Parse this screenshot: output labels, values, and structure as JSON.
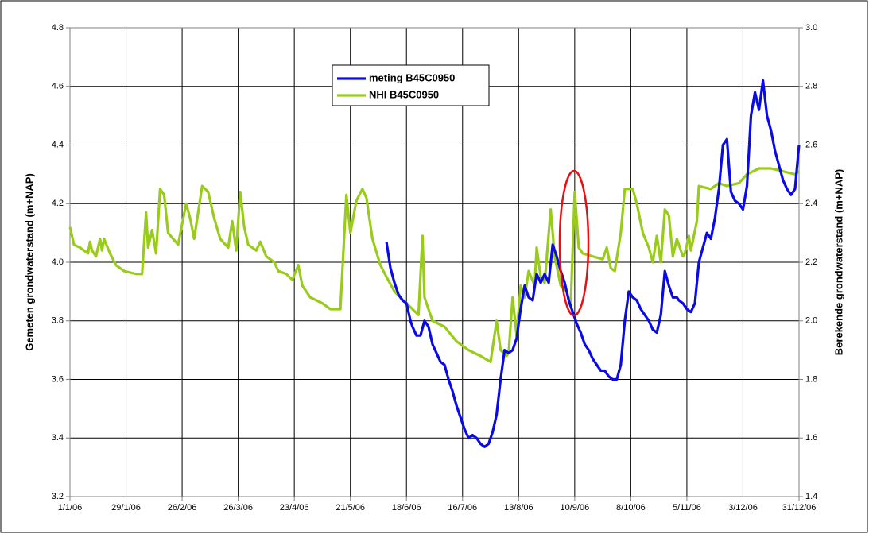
{
  "chart_data": {
    "type": "line",
    "ylabel": "Gemeten grondwaterstand (m+NAP)",
    "y2label": "Berekende grondwaterstand (m+NAP)",
    "xlim": [
      "2006-01-01",
      "2006-12-31"
    ],
    "xticks": [
      {
        "value": "2006-01-01",
        "label": "1/1/06"
      },
      {
        "value": "2006-01-29",
        "label": "29/1/06"
      },
      {
        "value": "2006-02-26",
        "label": "26/2/06"
      },
      {
        "value": "2006-03-26",
        "label": "26/3/06"
      },
      {
        "value": "2006-04-23",
        "label": "23/4/06"
      },
      {
        "value": "2006-05-21",
        "label": "21/5/06"
      },
      {
        "value": "2006-06-18",
        "label": "18/6/06"
      },
      {
        "value": "2006-07-16",
        "label": "16/7/06"
      },
      {
        "value": "2006-08-13",
        "label": "13/8/06"
      },
      {
        "value": "2006-09-10",
        "label": "10/9/06"
      },
      {
        "value": "2006-10-08",
        "label": "8/10/06"
      },
      {
        "value": "2006-11-05",
        "label": "5/11/06"
      },
      {
        "value": "2006-12-03",
        "label": "3/12/06"
      },
      {
        "value": "2006-12-31",
        "label": "31/12/06"
      }
    ],
    "ylim": [
      3.2,
      4.8
    ],
    "yticks": [
      3.2,
      3.4,
      3.6,
      3.8,
      {
        "value": 4,
        "label": "4.0"
      },
      4.2,
      4.4,
      4.6,
      4.8
    ],
    "y2lim": [
      1.4,
      3
    ],
    "y2ticks": [
      1.4,
      1.6,
      1.8,
      {
        "value": 2,
        "label": "2.0"
      },
      2.2,
      2.4,
      2.6,
      2.8,
      {
        "value": 3,
        "label": "3.0"
      }
    ],
    "grid": true,
    "series": [
      {
        "name": "meting B45C0950",
        "color": "#0a0ae6",
        "axis": "y",
        "x": [
          "2006-06-08",
          "2006-06-10",
          "2006-06-12",
          "2006-06-14",
          "2006-06-16",
          "2006-06-18",
          "2006-06-20",
          "2006-06-21",
          "2006-06-23",
          "2006-06-25",
          "2006-06-27",
          "2006-06-29",
          "2006-07-01",
          "2006-07-03",
          "2006-07-05",
          "2006-07-07",
          "2006-07-09",
          "2006-07-11",
          "2006-07-13",
          "2006-07-15",
          "2006-07-17",
          "2006-07-19",
          "2006-07-21",
          "2006-07-23",
          "2006-07-25",
          "2006-07-27",
          "2006-07-29",
          "2006-07-31",
          "2006-08-02",
          "2006-08-04",
          "2006-08-06",
          "2006-08-08",
          "2006-08-10",
          "2006-08-12",
          "2006-08-14",
          "2006-08-16",
          "2006-08-18",
          "2006-08-20",
          "2006-08-22",
          "2006-08-24",
          "2006-08-26",
          "2006-08-28",
          "2006-08-30",
          "2006-09-01",
          "2006-09-03",
          "2006-09-05",
          "2006-09-07",
          "2006-09-09",
          "2006-09-11",
          "2006-09-13",
          "2006-09-15",
          "2006-09-17",
          "2006-09-19",
          "2006-09-21",
          "2006-09-23",
          "2006-09-25",
          "2006-09-27",
          "2006-09-29",
          "2006-10-01",
          "2006-10-03",
          "2006-10-05",
          "2006-10-07",
          "2006-10-09",
          "2006-10-11",
          "2006-10-13",
          "2006-10-15",
          "2006-10-17",
          "2006-10-19",
          "2006-10-21",
          "2006-10-23",
          "2006-10-25",
          "2006-10-27",
          "2006-10-29",
          "2006-10-31",
          "2006-11-01",
          "2006-11-03",
          "2006-11-05",
          "2006-11-07",
          "2006-11-09",
          "2006-11-11",
          "2006-11-13",
          "2006-11-15",
          "2006-11-17",
          "2006-11-19",
          "2006-11-21",
          "2006-11-23",
          "2006-11-25",
          "2006-11-27",
          "2006-11-29",
          "2006-12-01",
          "2006-12-03",
          "2006-12-05",
          "2006-12-07",
          "2006-12-09",
          "2006-12-11",
          "2006-12-13",
          "2006-12-15",
          "2006-12-17",
          "2006-12-19",
          "2006-12-21",
          "2006-12-23",
          "2006-12-25",
          "2006-12-27",
          "2006-12-29",
          "2006-12-31"
        ],
        "values": [
          4.07,
          3.98,
          3.93,
          3.89,
          3.87,
          3.86,
          3.8,
          3.78,
          3.75,
          3.75,
          3.8,
          3.78,
          3.72,
          3.69,
          3.66,
          3.65,
          3.6,
          3.56,
          3.51,
          3.47,
          3.43,
          3.4,
          3.41,
          3.4,
          3.38,
          3.37,
          3.38,
          3.42,
          3.48,
          3.6,
          3.7,
          3.69,
          3.7,
          3.74,
          3.84,
          3.92,
          3.88,
          3.87,
          3.96,
          3.93,
          3.96,
          3.93,
          4.06,
          4.02,
          3.97,
          3.93,
          3.87,
          3.83,
          3.79,
          3.76,
          3.72,
          3.7,
          3.67,
          3.65,
          3.63,
          3.63,
          3.61,
          3.6,
          3.6,
          3.65,
          3.8,
          3.9,
          3.88,
          3.87,
          3.84,
          3.82,
          3.8,
          3.77,
          3.76,
          3.82,
          3.97,
          3.92,
          3.88,
          3.88,
          3.87,
          3.86,
          3.84,
          3.83,
          3.86,
          4,
          4.05,
          4.1,
          4.08,
          4.15,
          4.25,
          4.4,
          4.42,
          4.24,
          4.21,
          4.2,
          4.18,
          4.26,
          4.5,
          4.58,
          4.52,
          4.62,
          4.5,
          4.45,
          4.38,
          4.33,
          4.28,
          4.25,
          4.23,
          4.25,
          4.4
        ]
      },
      {
        "name": "NHI B45C0950",
        "color": "#99cc1a",
        "axis": "y2",
        "x": [
          "2006-01-01",
          "2006-01-03",
          "2006-01-06",
          "2006-01-10",
          "2006-01-11",
          "2006-01-12",
          "2006-01-14",
          "2006-01-16",
          "2006-01-17",
          "2006-01-18",
          "2006-01-21",
          "2006-01-24",
          "2006-01-28",
          "2006-02-03",
          "2006-02-06",
          "2006-02-08",
          "2006-02-09",
          "2006-02-11",
          "2006-02-13",
          "2006-02-15",
          "2006-02-17",
          "2006-02-19",
          "2006-02-24",
          "2006-02-28",
          "2006-03-02",
          "2006-03-04",
          "2006-03-08",
          "2006-03-11",
          "2006-03-14",
          "2006-03-17",
          "2006-03-21",
          "2006-03-23",
          "2006-03-25",
          "2006-03-27",
          "2006-03-29",
          "2006-03-31",
          "2006-04-04",
          "2006-04-06",
          "2006-04-09",
          "2006-04-13",
          "2006-04-15",
          "2006-04-19",
          "2006-04-22",
          "2006-04-25",
          "2006-04-27",
          "2006-05-01",
          "2006-05-07",
          "2006-05-11",
          "2006-05-16",
          "2006-05-19",
          "2006-05-21",
          "2006-05-24",
          "2006-05-27",
          "2006-05-29",
          "2006-06-01",
          "2006-06-05",
          "2006-06-08",
          "2006-06-12",
          "2006-06-18",
          "2006-06-24",
          "2006-06-26",
          "2006-06-27",
          "2006-07-01",
          "2006-07-07",
          "2006-07-13",
          "2006-07-19",
          "2006-07-25",
          "2006-07-30",
          "2006-08-02",
          "2006-08-04",
          "2006-08-07",
          "2006-08-08",
          "2006-08-10",
          "2006-08-12",
          "2006-08-14",
          "2006-08-16",
          "2006-08-18",
          "2006-08-21",
          "2006-08-22",
          "2006-08-24",
          "2006-08-26",
          "2006-08-29",
          "2006-08-31",
          "2006-09-03",
          "2006-09-06",
          "2006-09-08",
          "2006-09-10",
          "2006-09-12",
          "2006-09-14",
          "2006-09-19",
          "2006-09-24",
          "2006-09-26",
          "2006-09-28",
          "2006-09-30",
          "2006-10-03",
          "2006-10-05",
          "2006-10-09",
          "2006-10-11",
          "2006-10-14",
          "2006-10-17",
          "2006-10-19",
          "2006-10-21",
          "2006-10-23",
          "2006-10-25",
          "2006-10-27",
          "2006-10-29",
          "2006-10-31",
          "2006-11-03",
          "2006-11-04",
          "2006-11-06",
          "2006-11-07",
          "2006-11-10",
          "2006-11-11",
          "2006-11-17",
          "2006-11-21",
          "2006-11-25",
          "2006-12-01",
          "2006-12-05",
          "2006-12-11",
          "2006-12-17",
          "2006-12-23",
          "2006-12-29",
          "2006-12-31"
        ],
        "values": [
          2.32,
          2.26,
          2.25,
          2.23,
          2.27,
          2.24,
          2.22,
          2.28,
          2.24,
          2.28,
          2.23,
          2.19,
          2.17,
          2.16,
          2.16,
          2.37,
          2.25,
          2.31,
          2.23,
          2.45,
          2.43,
          2.3,
          2.26,
          2.4,
          2.35,
          2.28,
          2.46,
          2.44,
          2.35,
          2.28,
          2.25,
          2.34,
          2.24,
          2.44,
          2.32,
          2.26,
          2.24,
          2.27,
          2.22,
          2.2,
          2.17,
          2.16,
          2.14,
          2.19,
          2.12,
          2.08,
          2.06,
          2.04,
          2.04,
          2.43,
          2.3,
          2.41,
          2.45,
          2.42,
          2.28,
          2.19,
          2.15,
          2.1,
          2.06,
          2.02,
          2.29,
          2.08,
          2,
          1.98,
          1.93,
          1.9,
          1.88,
          1.86,
          2,
          1.9,
          1.88,
          1.89,
          2.08,
          1.95,
          2.12,
          2.08,
          2.17,
          2.12,
          2.25,
          2.15,
          2.13,
          2.38,
          2.22,
          2.12,
          2.1,
          2.05,
          2.44,
          2.25,
          2.23,
          2.22,
          2.21,
          2.25,
          2.18,
          2.17,
          2.3,
          2.45,
          2.45,
          2.4,
          2.3,
          2.25,
          2.2,
          2.29,
          2.2,
          2.38,
          2.36,
          2.22,
          2.28,
          2.22,
          2.23,
          2.29,
          2.24,
          2.34,
          2.46,
          2.45,
          2.47,
          2.46,
          2.47,
          2.5,
          2.52,
          2.52,
          2.51,
          2.5,
          2.51
        ]
      }
    ]
  }
}
